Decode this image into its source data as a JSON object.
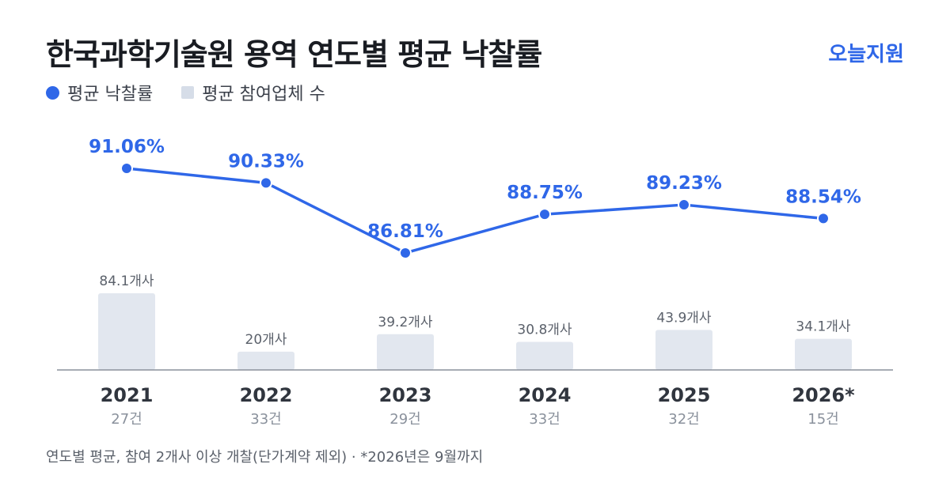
{
  "header": {
    "title": "한국과학기술원 용역 연도별 평균 낙찰률",
    "brand": "오늘지원"
  },
  "legend": {
    "rate_label": "평균 낙찰률",
    "bidders_label": "평균 참여업체 수"
  },
  "footnote": "연도별 평균, 참여 2개사 이상 개찰(단가계약 제외) · *2026년은 9월까지",
  "colors": {
    "line": "#2f67e8",
    "bar": "#e2e7ef",
    "axis": "#8a919c"
  },
  "chart_data": {
    "type": "bar+line",
    "categories": [
      "2021",
      "2022",
      "2023",
      "2024",
      "2025",
      "2026*"
    ],
    "counts": [
      "27건",
      "33건",
      "29건",
      "33건",
      "32건",
      "15건"
    ],
    "series": [
      {
        "name": "평균 낙찰률",
        "type": "line",
        "values": [
          91.06,
          90.33,
          86.81,
          88.75,
          89.23,
          88.54
        ],
        "labels": [
          "91.06%",
          "90.33%",
          "86.81%",
          "88.75%",
          "89.23%",
          "88.54%"
        ]
      },
      {
        "name": "평균 참여업체 수",
        "type": "bar",
        "values": [
          84.1,
          20,
          39.2,
          30.8,
          43.9,
          34.1
        ],
        "labels": [
          "84.1개사",
          "20개사",
          "39.2개사",
          "30.8개사",
          "43.9개사",
          "34.1개사"
        ]
      }
    ]
  }
}
